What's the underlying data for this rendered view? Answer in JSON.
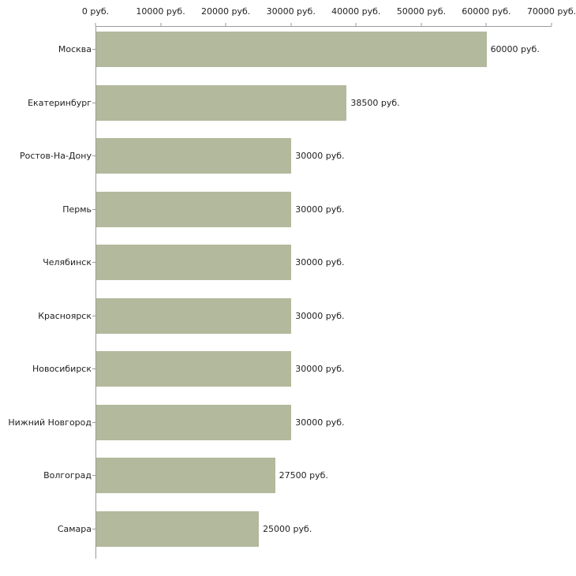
{
  "chart_data": {
    "type": "bar",
    "orientation": "horizontal",
    "title": "",
    "xlabel": "",
    "ylabel": "",
    "categories": [
      "Москва",
      "Екатеринбург",
      "Ростов-На-Дону",
      "Пермь",
      "Челябинск",
      "Красноярск",
      "Новосибирск",
      "Нижний Новгород",
      "Волгоград",
      "Самара"
    ],
    "values": [
      60000,
      38500,
      30000,
      30000,
      30000,
      30000,
      30000,
      30000,
      27500,
      25000
    ],
    "value_labels": [
      "60000 руб.",
      "38500 руб.",
      "30000 руб.",
      "30000 руб.",
      "30000 руб.",
      "30000 руб.",
      "30000 руб.",
      "30000 руб.",
      "27500 руб.",
      "25000 руб."
    ],
    "x_ticks": [
      0,
      10000,
      20000,
      30000,
      40000,
      50000,
      60000,
      70000
    ],
    "x_tick_labels": [
      "0 руб.",
      "10000 руб.",
      "20000 руб.",
      "30000 руб.",
      "40000 руб.",
      "50000 руб.",
      "60000 руб.",
      "70000 руб."
    ],
    "xlim": [
      0,
      70000
    ],
    "grid": false,
    "legend_position": "none",
    "colors": {
      "bar": "#b3b99c",
      "axis": "#9a9a9a",
      "text": "#222222",
      "background": "#ffffff"
    }
  }
}
